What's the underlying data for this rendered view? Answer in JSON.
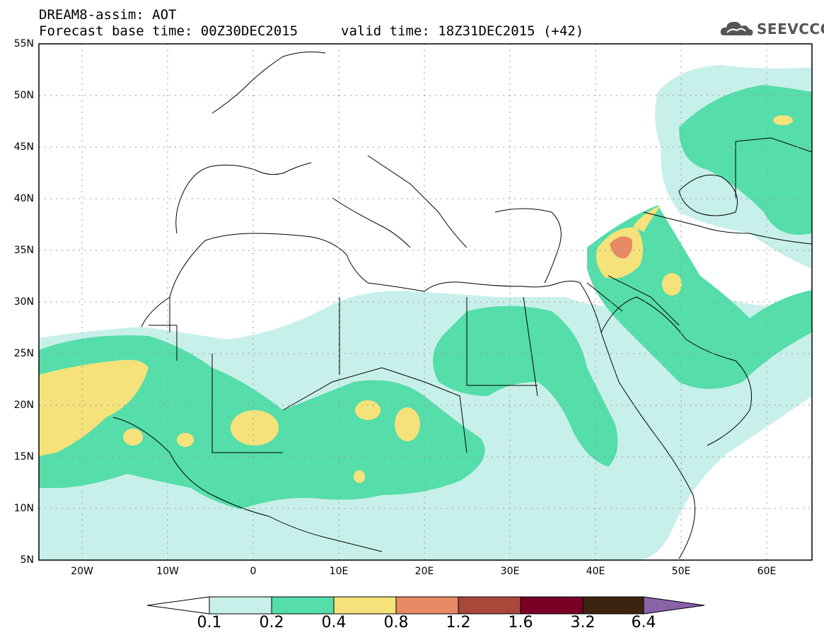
{
  "header": {
    "title": "DREAM8-assim: AOT",
    "base_time": "Forecast base time: 00Z30DEC2015",
    "valid_time": "valid time: 18Z31DEC2015 (+42)"
  },
  "logo": {
    "text": "SEEVCCC",
    "icon": "cloud-icon"
  },
  "map": {
    "variable": "AOT",
    "lon_range": [
      -25,
      65
    ],
    "lat_range": [
      5,
      55
    ],
    "grid": true,
    "lat_ticks": [
      "55N",
      "50N",
      "45N",
      "40N",
      "35N",
      "30N",
      "25N",
      "20N",
      "15N",
      "10N",
      "5N"
    ],
    "lon_ticks": [
      "20W",
      "10W",
      "0",
      "10E",
      "20E",
      "30E",
      "40E",
      "50E",
      "60E"
    ]
  },
  "colorbar": {
    "labels": [
      "0.1",
      "0.2",
      "0.4",
      "0.8",
      "1.2",
      "1.6",
      "3.2",
      "6.4"
    ],
    "colors": [
      "#ffffff",
      "#c8f0ea",
      "#55ddaa",
      "#f5e27a",
      "#e88a66",
      "#a8473a",
      "#7a0025",
      "#3c2410",
      "#8a62a8"
    ]
  }
}
